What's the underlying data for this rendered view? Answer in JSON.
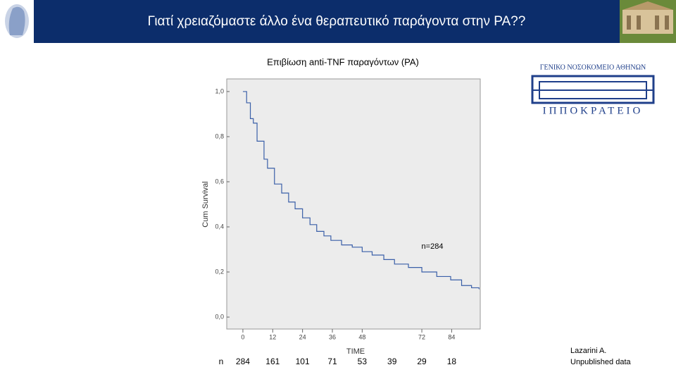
{
  "header": {
    "title": "Γιατί χρειαζόμαστε άλλο ένα θεραπευτικό παράγοντα στην ΡΑ??"
  },
  "logo": {
    "line1": "ΓΕΝΙΚΟ ΝΟΣΟΚΟΜΕΙΟ ΑΘΗΝΩΝ",
    "line2": "ΙΠΠΟΚΡΑΤΕΙΟ"
  },
  "chart_data": {
    "type": "step",
    "title": "Επιβίωση anti-TNF παραγόντων (ΡΑ)",
    "y_label": "Cum Survival",
    "x_label": "TIME",
    "annotation": "n=284",
    "series": [
      {
        "name": "Survival",
        "color": "#3a5fa8",
        "x": [
          0,
          1.5,
          3,
          4.2,
          5.7,
          8.5,
          9.9,
          12.7,
          15.6,
          18.4,
          21,
          24,
          27,
          29.7,
          32.6,
          35.4,
          39.7,
          44,
          48,
          52,
          56.7,
          61,
          66.6,
          72,
          78,
          83.6,
          88,
          92,
          95
        ],
        "values": [
          1.0,
          0.95,
          0.88,
          0.86,
          0.78,
          0.7,
          0.66,
          0.59,
          0.55,
          0.51,
          0.48,
          0.44,
          0.41,
          0.38,
          0.36,
          0.34,
          0.32,
          0.31,
          0.29,
          0.275,
          0.255,
          0.235,
          0.22,
          0.2,
          0.18,
          0.165,
          0.14,
          0.13,
          0.125
        ]
      }
    ],
    "xlim": [
      -6.5,
      95.5
    ],
    "ylim": [
      -0.053,
      1.056
    ],
    "xticks": [
      0,
      12,
      24,
      36,
      48,
      72,
      84
    ],
    "yticks": [
      {
        "value": 0,
        "label": "0,0"
      },
      {
        "value": 0.2,
        "label": "0,2"
      },
      {
        "value": 0.4,
        "label": "0,4"
      },
      {
        "value": 0.6,
        "label": "0,6"
      },
      {
        "value": 0.8,
        "label": "0,8"
      },
      {
        "value": 1,
        "label": "1,0"
      }
    ],
    "at_risk": {
      "label": "n",
      "x": [
        0,
        12,
        24,
        36,
        48,
        60,
        72,
        84
      ],
      "values": [
        284,
        161,
        101,
        71,
        53,
        39,
        29,
        18
      ]
    }
  },
  "source": {
    "line1": "Lazarini A.",
    "line2": "Unpublished data"
  }
}
